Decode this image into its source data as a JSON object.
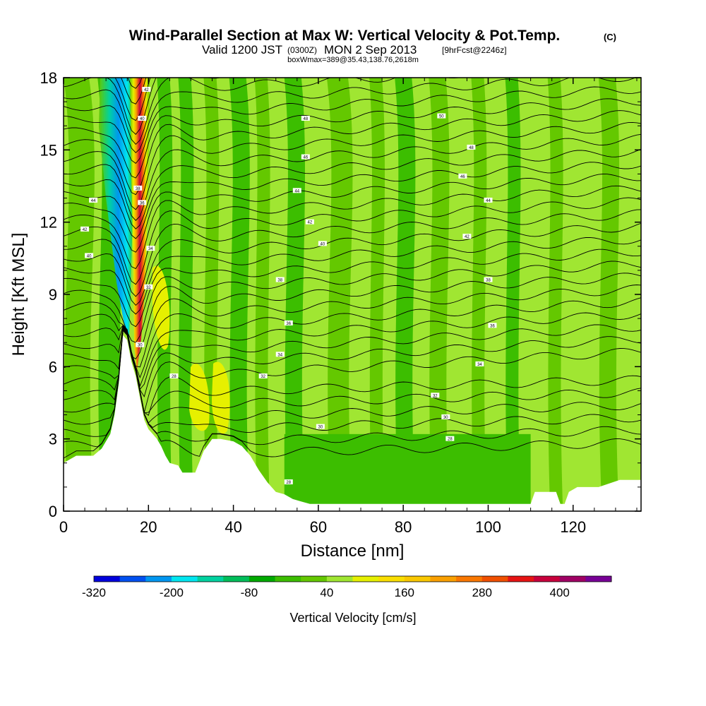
{
  "chart_data": {
    "type": "contour-cross-section",
    "title": "Wind-Parallel Section at Max W: Vertical Velocity & Pot.Temp.",
    "title_mark": "(C)",
    "subtitle_prefix": "Valid 1200 JST",
    "subtitle_zulu": "(0300Z)",
    "subtitle_date": "MON 2 Sep 2013",
    "subtitle_fcst": "[9hrFcst@2246z]",
    "subtitle2": "boxWmax=389@35.43,138.76,2618m",
    "xlabel": "Distance [nm]",
    "ylabel": "Height [Kft MSL]",
    "xlim": [
      0,
      136
    ],
    "ylim": [
      0,
      18
    ],
    "x_ticks": [
      "0",
      "20",
      "40",
      "60",
      "80",
      "100",
      "120"
    ],
    "y_ticks": [
      "0",
      "3",
      "6",
      "9",
      "12",
      "15",
      "18"
    ],
    "colorbar": {
      "label": "Vertical Velocity [cm/s]",
      "tick_labels": [
        "-320",
        "-200",
        "-80",
        "40",
        "160",
        "280",
        "400"
      ],
      "colors": [
        "#0000dc",
        "#0050f0",
        "#0096f0",
        "#00e6f0",
        "#00d2a0",
        "#00be5a",
        "#00aa00",
        "#3cbe00",
        "#64c800",
        "#a0e632",
        "#e6f000",
        "#fade00",
        "#fac800",
        "#faa000",
        "#fa7800",
        "#f05000",
        "#e61414",
        "#c8003c",
        "#a00064",
        "#780096"
      ]
    },
    "contour_labels": [
      {
        "x": 7,
        "y": 12.9,
        "text": "44"
      },
      {
        "x": 5,
        "y": 11.7,
        "text": "42"
      },
      {
        "x": 6,
        "y": 10.6,
        "text": "40"
      },
      {
        "x": 19.5,
        "y": 17.5,
        "text": "42"
      },
      {
        "x": 18.5,
        "y": 16.3,
        "text": "40"
      },
      {
        "x": 17.5,
        "y": 13.4,
        "text": "38"
      },
      {
        "x": 18.5,
        "y": 12.8,
        "text": "36"
      },
      {
        "x": 20.5,
        "y": 10.9,
        "text": "34"
      },
      {
        "x": 20,
        "y": 9.3,
        "text": "32"
      },
      {
        "x": 18,
        "y": 6.9,
        "text": "30"
      },
      {
        "x": 26,
        "y": 5.6,
        "text": "28"
      },
      {
        "x": 57,
        "y": 16.3,
        "text": "48"
      },
      {
        "x": 57,
        "y": 14.7,
        "text": "46"
      },
      {
        "x": 55,
        "y": 13.3,
        "text": "44"
      },
      {
        "x": 58,
        "y": 12,
        "text": "42"
      },
      {
        "x": 61,
        "y": 11.1,
        "text": "40"
      },
      {
        "x": 51,
        "y": 9.6,
        "text": "38"
      },
      {
        "x": 53,
        "y": 7.8,
        "text": "36"
      },
      {
        "x": 51,
        "y": 6.5,
        "text": "34"
      },
      {
        "x": 47,
        "y": 5.6,
        "text": "32"
      },
      {
        "x": 60.5,
        "y": 3.5,
        "text": "30"
      },
      {
        "x": 53,
        "y": 1.2,
        "text": "28"
      },
      {
        "x": 89,
        "y": 16.4,
        "text": "50"
      },
      {
        "x": 96,
        "y": 15.1,
        "text": "48"
      },
      {
        "x": 94,
        "y": 13.9,
        "text": "46"
      },
      {
        "x": 100,
        "y": 12.9,
        "text": "44"
      },
      {
        "x": 95,
        "y": 11.4,
        "text": "42"
      },
      {
        "x": 100,
        "y": 9.6,
        "text": "38"
      },
      {
        "x": 101,
        "y": 7.7,
        "text": "36"
      },
      {
        "x": 98,
        "y": 6.1,
        "text": "34"
      },
      {
        "x": 87.5,
        "y": 4.8,
        "text": "32"
      },
      {
        "x": 90,
        "y": 3.9,
        "text": "30"
      },
      {
        "x": 91,
        "y": 3.0,
        "text": "28"
      }
    ]
  }
}
